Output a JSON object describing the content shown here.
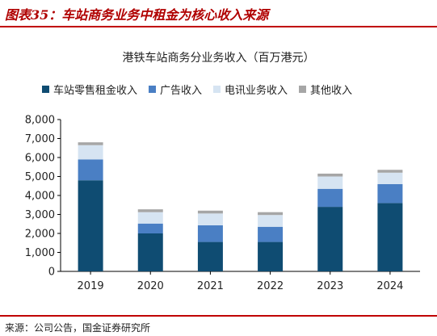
{
  "figure_label": "图表35：车站商务业务中租金为核心收入来源",
  "source": "来源：公司公告，国金证券研究所",
  "chart_data": {
    "type": "bar",
    "stacked": true,
    "title": "港铁车站商务分业务收入（百万港元）",
    "categories": [
      "2019",
      "2020",
      "2021",
      "2022",
      "2023",
      "2024"
    ],
    "series": [
      {
        "name": "车站零售租金收入",
        "color": "#0f4c72",
        "values": [
          4800,
          2000,
          1550,
          1550,
          3400,
          3600
        ]
      },
      {
        "name": "广告收入",
        "color": "#4a7fc4",
        "values": [
          1100,
          520,
          880,
          800,
          950,
          1000
        ]
      },
      {
        "name": "电讯业务收入",
        "color": "#d6e4f2",
        "values": [
          750,
          600,
          620,
          620,
          650,
          600
        ]
      },
      {
        "name": "其他收入",
        "color": "#a6a6a6",
        "values": [
          150,
          150,
          150,
          150,
          150,
          150
        ]
      }
    ],
    "ylim": [
      0,
      8000
    ],
    "yticks": [
      "0",
      "1,000",
      "2,000",
      "3,000",
      "4,000",
      "5,000",
      "6,000",
      "7,000",
      "8,000"
    ],
    "grid": false,
    "legend_position": "top"
  }
}
